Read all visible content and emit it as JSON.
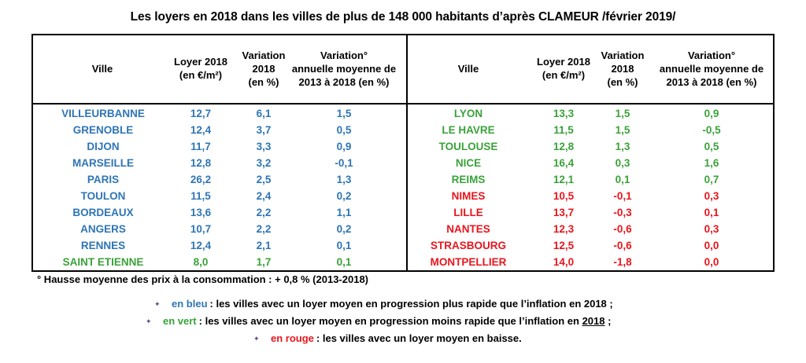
{
  "title": "Les loyers en 2018 dans les villes de plus de 148 000 habitants d’après CLAMEUR /février 2019/",
  "headers": {
    "ville": "Ville",
    "loyer": [
      "Loyer 2018",
      "(en €/m²)"
    ],
    "variation": [
      "Variation",
      "2018",
      "(en %)"
    ],
    "variation_annuelle": [
      "Variation°",
      "annuelle moyenne   de",
      "2013 à 2018 (en %)"
    ]
  },
  "colors": {
    "blue": "#2e75b6",
    "green": "#3aa23a",
    "red": "#e8151d",
    "bullet": "#5a4a8a"
  },
  "left_rows": [
    {
      "ville": "VILLEURBANNE",
      "loyer": "12,7",
      "variation": "6,1",
      "annuelle": "1,5",
      "color": "blue"
    },
    {
      "ville": "GRENOBLE",
      "loyer": "12,4",
      "variation": "3,7",
      "annuelle": "0,5",
      "color": "blue"
    },
    {
      "ville": "DIJON",
      "loyer": "11,7",
      "variation": "3,3",
      "annuelle": "0,9",
      "color": "blue"
    },
    {
      "ville": "MARSEILLE",
      "loyer": "12,8",
      "variation": "3,2",
      "annuelle": "-0,1",
      "color": "blue"
    },
    {
      "ville": "PARIS",
      "loyer": "26,2",
      "variation": "2,5",
      "annuelle": "1,3",
      "color": "blue"
    },
    {
      "ville": "TOULON",
      "loyer": "11,5",
      "variation": "2,4",
      "annuelle": "0,2",
      "color": "blue"
    },
    {
      "ville": "BORDEAUX",
      "loyer": "13,6",
      "variation": "2,2",
      "annuelle": "1,1",
      "color": "blue"
    },
    {
      "ville": "ANGERS",
      "loyer": "10,7",
      "variation": "2,2",
      "annuelle": "0,2",
      "color": "blue"
    },
    {
      "ville": "RENNES",
      "loyer": "12,4",
      "variation": "2,1",
      "annuelle": "0,1",
      "color": "blue"
    },
    {
      "ville": "SAINT ETIENNE",
      "loyer": "8,0",
      "variation": "1,7",
      "annuelle": "0,1",
      "color": "green"
    }
  ],
  "right_rows": [
    {
      "ville": "LYON",
      "loyer": "13,3",
      "variation": "1,5",
      "annuelle": "0,9",
      "color": "green"
    },
    {
      "ville": "LE HAVRE",
      "loyer": "11,5",
      "variation": "1,5",
      "annuelle": "-0,5",
      "color": "green"
    },
    {
      "ville": "TOULOUSE",
      "loyer": "12,8",
      "variation": "1,3",
      "annuelle": "0,5",
      "color": "green"
    },
    {
      "ville": "NICE",
      "loyer": "16,4",
      "variation": "0,3",
      "annuelle": "1,6",
      "color": "green"
    },
    {
      "ville": "REIMS",
      "loyer": "12,1",
      "variation": "0,1",
      "annuelle": "0,7",
      "color": "green"
    },
    {
      "ville": "NIMES",
      "loyer": "10,5",
      "variation": "-0,1",
      "annuelle": "0,3",
      "color": "red"
    },
    {
      "ville": "LILLE",
      "loyer": "13,7",
      "variation": "-0,3",
      "annuelle": "0,1",
      "color": "red"
    },
    {
      "ville": "NANTES",
      "loyer": "12,3",
      "variation": "-0,6",
      "annuelle": "0,3",
      "color": "red"
    },
    {
      "ville": "STRASBOURG",
      "loyer": "12,5",
      "variation": "-0,6",
      "annuelle": "0,0",
      "color": "red"
    },
    {
      "ville": "MONTPELLIER",
      "loyer": "14,0",
      "variation": "-1,8",
      "annuelle": "0,0",
      "color": "red"
    }
  ],
  "footnote": "° Hausse moyenne des prix à la consommation :  + 0,8 % (2013-2018)",
  "legend": {
    "bullet": "✦",
    "blue_key": "en bleu",
    "blue_text": ": les villes avec un loyer moyen en progression plus rapide que l’inflation en 2018 ;",
    "green_key": "en vert",
    "green_text": ": les villes avec un loyer moyen en progression moins rapide que l’inflation en ",
    "green_year": "2018",
    "green_end": "  ;",
    "red_key": "en rouge",
    "red_text": ": les villes avec un loyer moyen en baisse."
  }
}
